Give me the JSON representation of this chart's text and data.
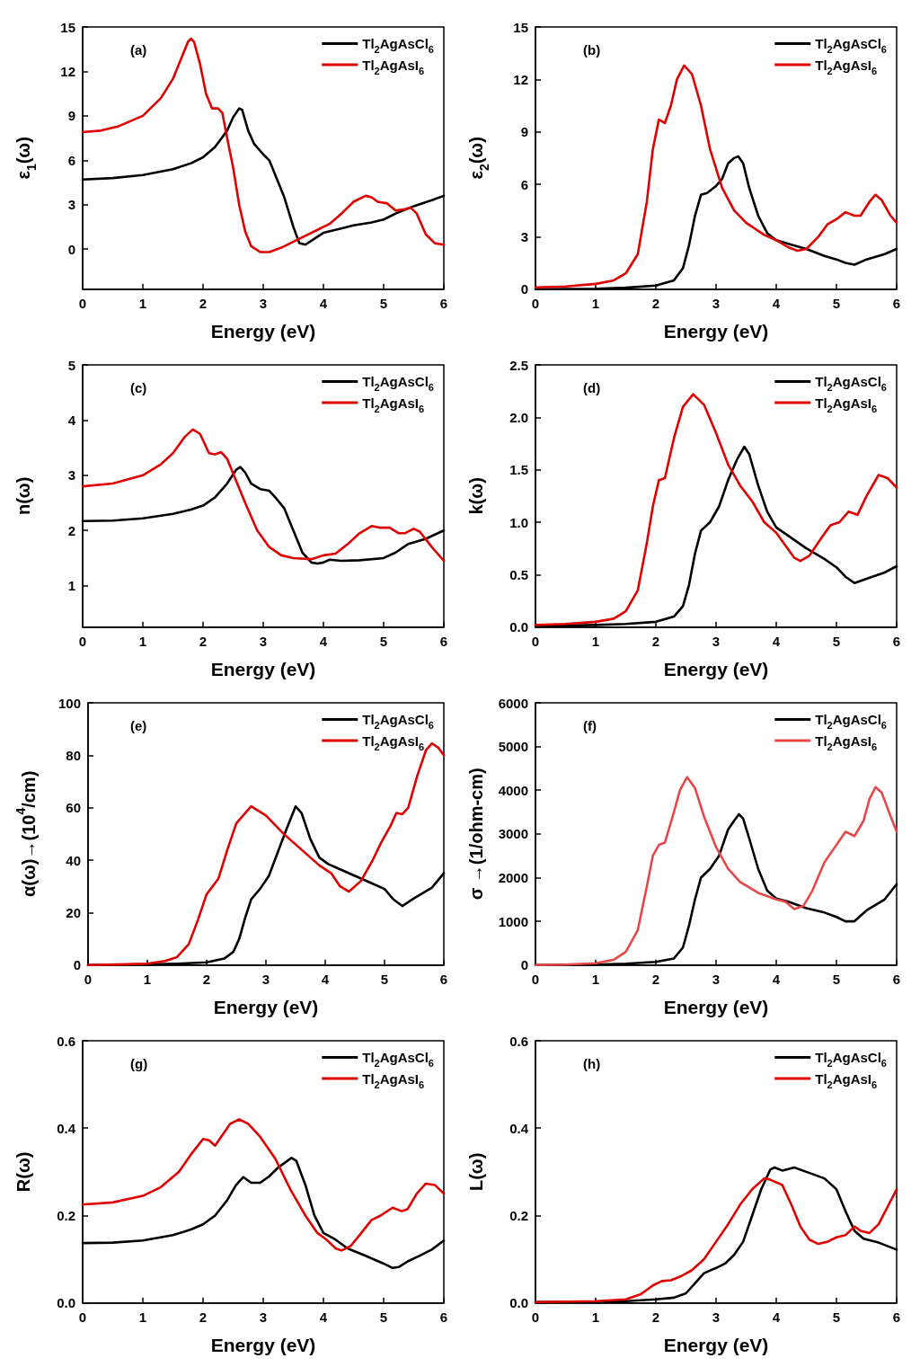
{
  "chart_data": [
    {
      "type": "line",
      "xlabel": "Energy (eV)",
      "ylabel": "ε$_{1}$(ω)",
      "annotations": [
        "(a)"
      ],
      "xlim": [
        0,
        6
      ],
      "xticks": [
        0,
        1,
        2,
        3,
        4,
        5,
        6
      ],
      "ylim": [
        -2.7,
        15
      ],
      "yticks": [
        0,
        3,
        6,
        9,
        12,
        15
      ],
      "grid": false,
      "legend": "top right",
      "marker": "none",
      "line_style": "solid",
      "series": [
        {
          "name": "Tl$_{2}$AgAsCl$_{6}$",
          "color": "#000000",
          "x": [
            0,
            0.5,
            1,
            1.5,
            1.8,
            2,
            2.2,
            2.4,
            2.5,
            2.6,
            2.65,
            2.75,
            2.85,
            3.0,
            3.1,
            3.2,
            3.35,
            3.5,
            3.6,
            3.7,
            3.85,
            4.0,
            4.2,
            4.5,
            4.8,
            5.0,
            5.2,
            5.5,
            5.8,
            6
          ],
          "values": [
            4.7,
            4.8,
            5.0,
            5.4,
            5.8,
            6.2,
            6.9,
            8.0,
            8.9,
            9.5,
            9.4,
            8.0,
            7.1,
            6.4,
            6.0,
            5.0,
            3.5,
            1.5,
            0.4,
            0.3,
            0.7,
            1.1,
            1.3,
            1.6,
            1.8,
            2.0,
            2.4,
            2.9,
            3.3,
            3.6
          ]
        },
        {
          "name": "Tl$_{2}$AgAsI$_{6}$",
          "color": "#e00000",
          "x": [
            0,
            0.3,
            0.6,
            1.0,
            1.3,
            1.5,
            1.65,
            1.75,
            1.8,
            1.85,
            1.95,
            2.05,
            2.15,
            2.25,
            2.32,
            2.4,
            2.5,
            2.6,
            2.7,
            2.8,
            2.95,
            3.1,
            3.3,
            3.6,
            3.9,
            4.1,
            4.3,
            4.5,
            4.7,
            4.8,
            4.9,
            5.05,
            5.2,
            5.35,
            5.45,
            5.55,
            5.7,
            5.85,
            6
          ],
          "values": [
            7.9,
            8.0,
            8.3,
            9.0,
            10.2,
            11.5,
            13.0,
            14.0,
            14.2,
            14.0,
            12.5,
            10.5,
            9.5,
            9.5,
            9.2,
            7.5,
            5.5,
            3.0,
            1.2,
            0.2,
            -0.2,
            -0.2,
            0.1,
            0.7,
            1.3,
            1.7,
            2.4,
            3.2,
            3.6,
            3.5,
            3.2,
            3.1,
            2.6,
            2.7,
            2.8,
            2.4,
            1.0,
            0.4,
            0.3
          ]
        }
      ]
    },
    {
      "type": "line",
      "xlabel": "Energy (eV)",
      "ylabel": "ε$_{2}$(ω)",
      "annotations": [
        "(b)"
      ],
      "xlim": [
        0,
        6
      ],
      "xticks": [
        0,
        1,
        2,
        3,
        4,
        5,
        6
      ],
      "ylim": [
        0,
        15
      ],
      "yticks": [
        0,
        3,
        6,
        9,
        12,
        15
      ],
      "grid": false,
      "legend": "top right",
      "marker": "none",
      "line_style": "solid",
      "series": [
        {
          "name": "Tl$_{2}$AgAsCl$_{6}$",
          "color": "#000000",
          "x": [
            0,
            1,
            1.5,
            2,
            2.3,
            2.45,
            2.55,
            2.65,
            2.75,
            2.85,
            3.0,
            3.1,
            3.2,
            3.3,
            3.37,
            3.45,
            3.55,
            3.7,
            3.85,
            4.0,
            4.2,
            4.5,
            4.8,
            5.0,
            5.15,
            5.3,
            5.5,
            5.8,
            6
          ],
          "values": [
            0,
            0.02,
            0.08,
            0.2,
            0.5,
            1.2,
            2.5,
            4.2,
            5.4,
            5.5,
            5.9,
            6.3,
            7.2,
            7.5,
            7.6,
            7.2,
            5.8,
            4.2,
            3.2,
            2.8,
            2.6,
            2.3,
            1.9,
            1.7,
            1.5,
            1.4,
            1.7,
            2.0,
            2.3
          ]
        },
        {
          "name": "Tl$_{2}$AgAsI$_{6}$",
          "color": "#e00000",
          "x": [
            0,
            0.5,
            1,
            1.3,
            1.5,
            1.7,
            1.85,
            1.95,
            2.05,
            2.15,
            2.25,
            2.35,
            2.47,
            2.6,
            2.75,
            2.9,
            3.1,
            3.3,
            3.5,
            3.8,
            4.0,
            4.2,
            4.35,
            4.5,
            4.7,
            4.85,
            5.0,
            5.15,
            5.3,
            5.4,
            5.55,
            5.65,
            5.75,
            5.9,
            6
          ],
          "values": [
            0.1,
            0.15,
            0.3,
            0.5,
            0.9,
            2.0,
            5.0,
            8.0,
            9.7,
            9.5,
            10.5,
            12.0,
            12.8,
            12.3,
            10.5,
            8.0,
            5.8,
            4.5,
            3.8,
            3.1,
            2.8,
            2.4,
            2.2,
            2.3,
            3.0,
            3.7,
            4.0,
            4.4,
            4.2,
            4.2,
            5.0,
            5.4,
            5.1,
            4.2,
            3.8
          ]
        }
      ]
    },
    {
      "type": "line",
      "xlabel": "Energy (eV)",
      "ylabel": "n(ω)",
      "annotations": [
        "(c)"
      ],
      "xlim": [
        0,
        6
      ],
      "xticks": [
        0,
        1,
        2,
        3,
        4,
        5,
        6
      ],
      "ylim": [
        0.25,
        5
      ],
      "yticks": [
        1,
        2,
        3,
        4,
        5
      ],
      "grid": false,
      "legend": "top right",
      "marker": "none",
      "line_style": "solid",
      "series": [
        {
          "name": "Tl$_{2}$AgAsCl$_{6}$",
          "color": "#000000",
          "x": [
            0,
            0.5,
            1,
            1.5,
            1.8,
            2.0,
            2.2,
            2.4,
            2.55,
            2.62,
            2.7,
            2.8,
            2.95,
            3.1,
            3.2,
            3.35,
            3.5,
            3.65,
            3.8,
            3.9,
            4.0,
            4.1,
            4.3,
            4.6,
            5.0,
            5.2,
            5.4,
            5.7,
            6
          ],
          "values": [
            2.17,
            2.18,
            2.22,
            2.3,
            2.38,
            2.45,
            2.6,
            2.85,
            3.1,
            3.15,
            3.05,
            2.85,
            2.75,
            2.72,
            2.6,
            2.4,
            2.0,
            1.6,
            1.42,
            1.4,
            1.42,
            1.47,
            1.45,
            1.46,
            1.5,
            1.6,
            1.75,
            1.85,
            2.0
          ]
        },
        {
          "name": "Tl$_{2}$AgAsI$_{6}$",
          "color": "#e00000",
          "x": [
            0,
            0.5,
            1,
            1.3,
            1.5,
            1.7,
            1.83,
            1.95,
            2.1,
            2.2,
            2.3,
            2.4,
            2.55,
            2.7,
            2.9,
            3.1,
            3.3,
            3.5,
            3.8,
            4.0,
            4.2,
            4.4,
            4.6,
            4.8,
            4.95,
            5.1,
            5.25,
            5.35,
            5.5,
            5.6,
            5.8,
            6
          ],
          "values": [
            2.8,
            2.85,
            3.0,
            3.2,
            3.4,
            3.7,
            3.83,
            3.75,
            3.4,
            3.38,
            3.42,
            3.3,
            2.9,
            2.5,
            2.0,
            1.7,
            1.55,
            1.5,
            1.48,
            1.55,
            1.58,
            1.75,
            1.95,
            2.08,
            2.05,
            2.05,
            1.95,
            1.95,
            2.03,
            1.98,
            1.7,
            1.45
          ]
        }
      ]
    },
    {
      "type": "line",
      "xlabel": "Energy (eV)",
      "ylabel": "k(ω)",
      "annotations": [
        "(d)"
      ],
      "xlim": [
        0,
        6
      ],
      "xticks": [
        0,
        1,
        2,
        3,
        4,
        5,
        6
      ],
      "ylim": [
        0,
        2.5
      ],
      "yticks": [
        {
          "value": 0,
          "label": "0.0"
        },
        0.5,
        {
          "value": 1,
          "label": "1.0"
        },
        1.5,
        {
          "value": 2,
          "label": "2.0"
        },
        2.5
      ],
      "grid": false,
      "legend": "top right",
      "marker": "none",
      "line_style": "solid",
      "series": [
        {
          "name": "Tl$_{2}$AgAsCl$_{6}$",
          "color": "#000000",
          "x": [
            0,
            1,
            1.5,
            2,
            2.3,
            2.45,
            2.55,
            2.65,
            2.75,
            2.9,
            3.05,
            3.2,
            3.35,
            3.47,
            3.55,
            3.7,
            3.85,
            4.0,
            4.2,
            4.5,
            4.8,
            5.0,
            5.15,
            5.3,
            5.5,
            5.8,
            6
          ],
          "values": [
            0.01,
            0.02,
            0.03,
            0.05,
            0.1,
            0.2,
            0.4,
            0.7,
            0.92,
            1.0,
            1.15,
            1.4,
            1.6,
            1.72,
            1.65,
            1.35,
            1.1,
            0.95,
            0.87,
            0.75,
            0.65,
            0.57,
            0.48,
            0.42,
            0.46,
            0.52,
            0.58
          ]
        },
        {
          "name": "Tl$_{2}$AgAsI$_{6}$",
          "color": "#e00000",
          "x": [
            0,
            0.5,
            1,
            1.3,
            1.5,
            1.7,
            1.85,
            1.95,
            2.05,
            2.15,
            2.3,
            2.45,
            2.62,
            2.8,
            3.0,
            3.2,
            3.4,
            3.6,
            3.8,
            4.0,
            4.15,
            4.3,
            4.4,
            4.55,
            4.75,
            4.9,
            5.05,
            5.2,
            5.35,
            5.5,
            5.7,
            5.85,
            6
          ],
          "values": [
            0.02,
            0.03,
            0.05,
            0.08,
            0.15,
            0.35,
            0.8,
            1.15,
            1.4,
            1.42,
            1.8,
            2.1,
            2.22,
            2.12,
            1.85,
            1.55,
            1.35,
            1.2,
            1.0,
            0.9,
            0.78,
            0.66,
            0.63,
            0.68,
            0.85,
            0.97,
            1.0,
            1.1,
            1.07,
            1.25,
            1.45,
            1.42,
            1.33
          ]
        }
      ]
    },
    {
      "type": "line",
      "xlabel": "Energy (eV)",
      "ylabel": "α(ω)→(10$^{4}$/cm)",
      "annotations": [
        "(e)"
      ],
      "xlim": [
        0,
        6
      ],
      "xticks": [
        0,
        1,
        2,
        3,
        4,
        5,
        6
      ],
      "ylim": [
        0,
        100
      ],
      "yticks": [
        0,
        20,
        40,
        60,
        80,
        100
      ],
      "grid": false,
      "legend": "top right",
      "marker": "none",
      "line_style": "solid",
      "series": [
        {
          "name": "Tl$_{2}$AgAsCl$_{6}$",
          "color": "#000000",
          "x": [
            0,
            1,
            1.5,
            2,
            2.3,
            2.45,
            2.55,
            2.65,
            2.75,
            2.9,
            3.05,
            3.2,
            3.35,
            3.5,
            3.6,
            3.75,
            3.9,
            4.05,
            4.2,
            4.5,
            4.8,
            5.0,
            5.15,
            5.3,
            5.5,
            5.8,
            6
          ],
          "values": [
            0,
            0.2,
            0.5,
            1,
            2.5,
            5,
            10,
            18,
            25,
            29,
            34,
            43,
            52,
            60.5,
            58,
            48,
            41,
            38.5,
            37,
            34,
            31,
            29,
            25,
            22.5,
            25.5,
            29.5,
            35
          ]
        },
        {
          "name": "Tl$_{2}$AgAsI$_{6}$",
          "color": "#e00000",
          "x": [
            0,
            0.5,
            1,
            1.3,
            1.5,
            1.7,
            1.85,
            2.0,
            2.1,
            2.2,
            2.35,
            2.5,
            2.75,
            3.0,
            3.3,
            3.6,
            3.9,
            4.1,
            4.25,
            4.4,
            4.6,
            4.8,
            4.95,
            5.1,
            5.2,
            5.3,
            5.4,
            5.55,
            5.7,
            5.8,
            5.9,
            6
          ],
          "values": [
            0,
            0.2,
            0.5,
            1.5,
            3,
            8,
            17,
            27,
            30,
            33,
            44,
            54,
            60.5,
            57,
            50,
            44,
            38,
            35,
            30,
            28,
            32,
            40,
            47,
            53,
            58,
            57.5,
            60,
            72,
            82,
            84.5,
            83,
            80
          ]
        }
      ]
    },
    {
      "type": "line",
      "xlabel": "Energy (eV)",
      "ylabel": "σ →(1/ohm-cm)",
      "annotations": [
        "(f)"
      ],
      "xlim": [
        0,
        6
      ],
      "xticks": [
        0,
        1,
        2,
        3,
        4,
        5,
        6
      ],
      "ylim": [
        0,
        6000
      ],
      "yticks": [
        0,
        1000,
        2000,
        3000,
        4000,
        5000,
        6000
      ],
      "grid": false,
      "legend": "top right",
      "marker": "none",
      "line_style": "solid",
      "series": [
        {
          "name": "Tl$_{2}$AgAsCl$_{6}$",
          "color": "#000000",
          "x": [
            0,
            1,
            1.5,
            2,
            2.3,
            2.45,
            2.55,
            2.65,
            2.75,
            2.9,
            3.05,
            3.2,
            3.3,
            3.38,
            3.45,
            3.55,
            3.7,
            3.85,
            4.0,
            4.2,
            4.5,
            4.8,
            5.0,
            5.15,
            5.3,
            5.5,
            5.8,
            6
          ],
          "values": [
            0,
            10,
            30,
            70,
            150,
            400,
            900,
            1500,
            2000,
            2200,
            2500,
            3100,
            3300,
            3450,
            3350,
            2900,
            2200,
            1700,
            1520,
            1450,
            1300,
            1200,
            1100,
            1000,
            1000,
            1250,
            1500,
            1850
          ]
        },
        {
          "name": "Tl$_{2}$AgAsI$_{6}$",
          "color": "#e8474a",
          "x": [
            0,
            0.5,
            1,
            1.3,
            1.5,
            1.7,
            1.85,
            1.95,
            2.05,
            2.15,
            2.3,
            2.4,
            2.52,
            2.65,
            2.8,
            3.0,
            3.2,
            3.4,
            3.7,
            4.0,
            4.15,
            4.3,
            4.45,
            4.6,
            4.8,
            4.95,
            5.05,
            5.15,
            5.3,
            5.45,
            5.55,
            5.65,
            5.75,
            5.9,
            6
          ],
          "values": [
            0,
            10,
            40,
            120,
            300,
            800,
            1800,
            2500,
            2750,
            2800,
            3500,
            4000,
            4300,
            4050,
            3400,
            2700,
            2200,
            1900,
            1650,
            1500,
            1450,
            1280,
            1350,
            1700,
            2350,
            2650,
            2850,
            3050,
            2950,
            3300,
            3800,
            4070,
            3950,
            3400,
            3050
          ]
        }
      ]
    },
    {
      "type": "line",
      "xlabel": "Energy (eV)",
      "ylabel": "R(ω)",
      "annotations": [
        "(g)"
      ],
      "xlim": [
        0,
        6
      ],
      "xticks": [
        0,
        1,
        2,
        3,
        4,
        5,
        6
      ],
      "ylim": [
        0,
        0.6
      ],
      "yticks": [
        {
          "value": 0,
          "label": "0.0"
        },
        0.2,
        0.4,
        0.6
      ],
      "grid": false,
      "legend": "top right",
      "marker": "none",
      "line_style": "solid",
      "series": [
        {
          "name": "Tl$_{2}$AgAsCl$_{6}$",
          "color": "#000000",
          "x": [
            0,
            0.5,
            1,
            1.5,
            1.8,
            2.0,
            2.2,
            2.4,
            2.55,
            2.67,
            2.8,
            2.95,
            3.1,
            3.25,
            3.35,
            3.47,
            3.55,
            3.7,
            3.85,
            4.0,
            4.2,
            4.4,
            4.7,
            5.0,
            5.15,
            5.25,
            5.4,
            5.6,
            5.8,
            6
          ],
          "values": [
            0.137,
            0.138,
            0.143,
            0.155,
            0.168,
            0.18,
            0.2,
            0.235,
            0.27,
            0.288,
            0.275,
            0.275,
            0.29,
            0.31,
            0.32,
            0.332,
            0.325,
            0.27,
            0.2,
            0.16,
            0.145,
            0.125,
            0.108,
            0.09,
            0.08,
            0.082,
            0.095,
            0.108,
            0.122,
            0.143
          ]
        },
        {
          "name": "Tl$_{2}$AgAsI$_{6}$",
          "color": "#e00000",
          "x": [
            0,
            0.5,
            1,
            1.3,
            1.6,
            1.8,
            2.0,
            2.1,
            2.2,
            2.3,
            2.45,
            2.6,
            2.75,
            2.95,
            3.2,
            3.45,
            3.7,
            3.9,
            4.05,
            4.2,
            4.3,
            4.45,
            4.6,
            4.8,
            4.95,
            5.15,
            5.3,
            5.4,
            5.55,
            5.7,
            5.85,
            6
          ],
          "values": [
            0.225,
            0.23,
            0.245,
            0.265,
            0.3,
            0.34,
            0.375,
            0.372,
            0.36,
            0.38,
            0.41,
            0.42,
            0.41,
            0.38,
            0.33,
            0.26,
            0.2,
            0.16,
            0.145,
            0.125,
            0.12,
            0.13,
            0.155,
            0.19,
            0.2,
            0.218,
            0.21,
            0.215,
            0.25,
            0.273,
            0.27,
            0.25
          ]
        }
      ]
    },
    {
      "type": "line",
      "xlabel": "Energy (eV)",
      "ylabel": "L(ω)",
      "annotations": [
        "(h)"
      ],
      "xlim": [
        0,
        6
      ],
      "xticks": [
        0,
        1,
        2,
        3,
        4,
        5,
        6
      ],
      "ylim": [
        0,
        0.6
      ],
      "yticks": [
        {
          "value": 0,
          "label": "0.0"
        },
        0.2,
        0.4,
        0.6
      ],
      "grid": false,
      "legend": "top right",
      "marker": "none",
      "line_style": "solid",
      "series": [
        {
          "name": "Tl$_{2}$AgAsCl$_{6}$",
          "color": "#000000",
          "x": [
            0,
            1,
            1.5,
            2,
            2.3,
            2.5,
            2.65,
            2.8,
            3.0,
            3.15,
            3.3,
            3.45,
            3.6,
            3.75,
            3.9,
            3.97,
            4.1,
            4.3,
            4.5,
            4.8,
            5.0,
            5.15,
            5.3,
            5.45,
            5.7,
            6
          ],
          "values": [
            0.002,
            0.003,
            0.004,
            0.008,
            0.012,
            0.022,
            0.045,
            0.068,
            0.08,
            0.09,
            0.11,
            0.14,
            0.2,
            0.26,
            0.305,
            0.31,
            0.303,
            0.31,
            0.3,
            0.285,
            0.26,
            0.21,
            0.165,
            0.147,
            0.138,
            0.122
          ]
        },
        {
          "name": "Tl$_{2}$AgAsI$_{6}$",
          "color": "#e00000",
          "x": [
            0,
            1,
            1.5,
            1.75,
            1.95,
            2.1,
            2.25,
            2.4,
            2.6,
            2.8,
            3.0,
            3.2,
            3.4,
            3.6,
            3.8,
            3.9,
            4.1,
            4.25,
            4.4,
            4.55,
            4.7,
            4.85,
            5.0,
            5.15,
            5.3,
            5.4,
            5.55,
            5.7,
            5.85,
            6
          ],
          "values": [
            0.002,
            0.004,
            0.008,
            0.02,
            0.04,
            0.05,
            0.052,
            0.06,
            0.075,
            0.1,
            0.14,
            0.18,
            0.225,
            0.26,
            0.285,
            0.282,
            0.27,
            0.225,
            0.175,
            0.145,
            0.135,
            0.14,
            0.15,
            0.155,
            0.175,
            0.165,
            0.16,
            0.18,
            0.22,
            0.26
          ]
        }
      ]
    }
  ]
}
